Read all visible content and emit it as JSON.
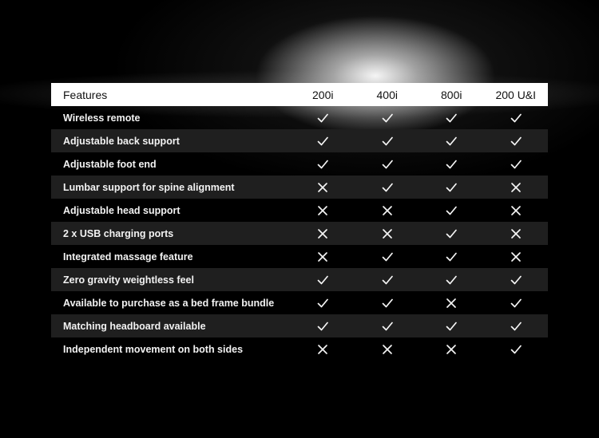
{
  "header": {
    "features_label": "Features",
    "models": [
      "200i",
      "400i",
      "800i",
      "200 U&I"
    ]
  },
  "rows": [
    {
      "feature": "Wireless remote",
      "values": [
        "check",
        "check",
        "check",
        "check"
      ]
    },
    {
      "feature": "Adjustable back support",
      "values": [
        "check",
        "check",
        "check",
        "check"
      ]
    },
    {
      "feature": "Adjustable foot end",
      "values": [
        "check",
        "check",
        "check",
        "check"
      ]
    },
    {
      "feature": "Lumbar support for spine alignment",
      "values": [
        "cross",
        "check",
        "check",
        "cross"
      ]
    },
    {
      "feature": "Adjustable head support",
      "values": [
        "cross",
        "cross",
        "check",
        "cross"
      ]
    },
    {
      "feature": "2 x USB charging ports",
      "values": [
        "cross",
        "cross",
        "check",
        "cross"
      ]
    },
    {
      "feature": "Integrated massage feature",
      "values": [
        "cross",
        "check",
        "check",
        "cross"
      ]
    },
    {
      "feature": "Zero gravity weightless feel",
      "values": [
        "check",
        "check",
        "check",
        "check"
      ]
    },
    {
      "feature": "Available to purchase as a bed frame bundle",
      "values": [
        "check",
        "check",
        "cross",
        "check"
      ]
    },
    {
      "feature": "Matching headboard available",
      "values": [
        "check",
        "check",
        "check",
        "check"
      ]
    },
    {
      "feature": "Independent movement on both sides",
      "values": [
        "cross",
        "cross",
        "cross",
        "check"
      ]
    }
  ],
  "icons": {
    "check": "check-icon",
    "cross": "cross-icon"
  },
  "colors": {
    "background": "#000000",
    "header_background": "#ffffff",
    "row_shade": "#1f1f1f",
    "mark": "#f5f5f5"
  }
}
